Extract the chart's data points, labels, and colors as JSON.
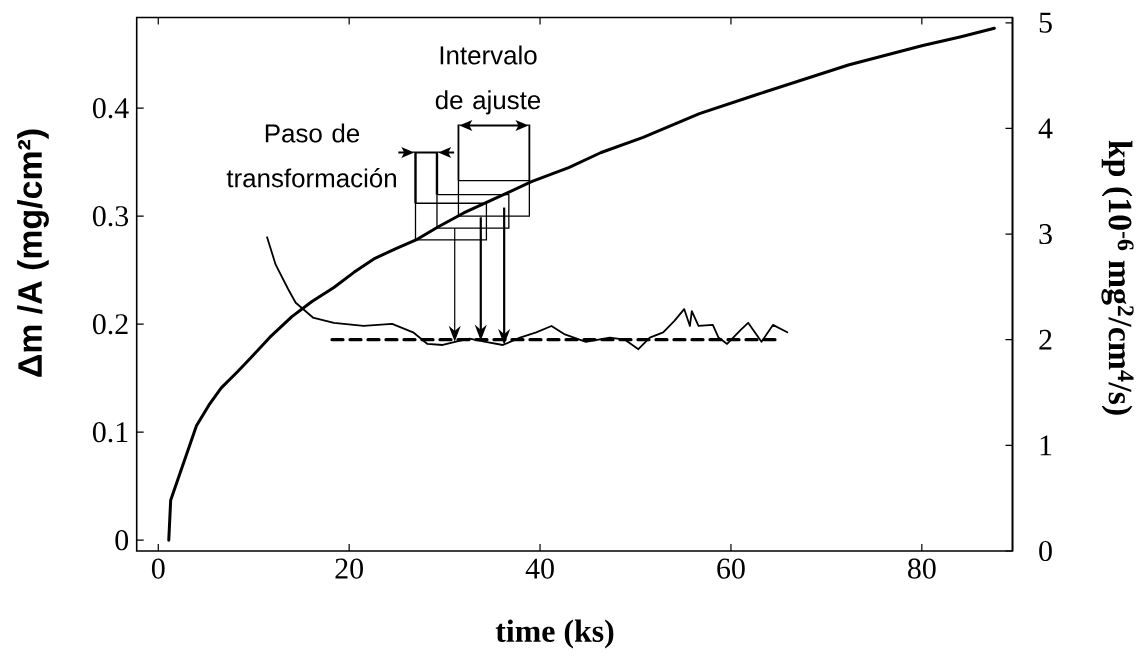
{
  "chart_data": {
    "type": "line",
    "xlabel": "time (ks)",
    "ylabel": "Δm /A (mg/cm²)",
    "y2label": "kp (10$^{-6}$ mg$^{2}$/cm$^{4}$/s)",
    "annotations": [
      "Paso de transformación",
      "Intervalo de ajuste"
    ],
    "xlim": [
      -2.26,
      89.5
    ],
    "xticks": [
      0,
      20,
      40,
      60,
      80
    ],
    "ylim": [
      -0.01,
      0.484
    ],
    "yticks": [
      0,
      0.1,
      0.2,
      0.3,
      0.4
    ],
    "y2lim": [
      0,
      5.05
    ],
    "y2ticks": [
      0,
      1,
      2,
      3,
      4,
      5
    ],
    "marker": "none",
    "series": [
      {
        "color": "#000000",
        "x": [
          1.1,
          1.3,
          2.2,
          3.1,
          4.0,
          5.3,
          6.6,
          8.3,
          9.6,
          11.7,
          14.0,
          16.1,
          18.4,
          20.5,
          22.7,
          24.9,
          27.0,
          29.3,
          32.0,
          35.2,
          39.1,
          43.0,
          46.4,
          50.8,
          56.7,
          62.5,
          67.4,
          72.3,
          76.2,
          80.1,
          84.0,
          87.6
        ],
        "values": [
          0.0,
          0.037,
          0.06,
          0.083,
          0.106,
          0.125,
          0.141,
          0.156,
          0.168,
          0.188,
          0.207,
          0.221,
          0.234,
          0.248,
          0.261,
          0.27,
          0.278,
          0.29,
          0.303,
          0.316,
          0.332,
          0.345,
          0.359,
          0.373,
          0.395,
          0.412,
          0.426,
          0.44,
          0.449,
          0.458,
          0.466,
          0.474
        ]
      },
      {
        "color": "#000000",
        "axis": "y2",
        "x": [
          11.4,
          12.3,
          13.6,
          14.4,
          16.2,
          18.4,
          21.5,
          24.5,
          26.7,
          28.2,
          29.8,
          31.1,
          32.6,
          34.3,
          36.1,
          37.9,
          39.6,
          41.2,
          42.6,
          44.8,
          47.3,
          48.9,
          50.3,
          51.5,
          52.9,
          54.1,
          55.1,
          55.7,
          55.9,
          56.6,
          58.1,
          58.7,
          59.6,
          61.0,
          61.8,
          63.2,
          64.4,
          65.9
        ],
        "values": [
          2.97,
          2.71,
          2.48,
          2.35,
          2.21,
          2.16,
          2.13,
          2.15,
          2.07,
          1.96,
          1.95,
          1.98,
          2.01,
          1.98,
          1.95,
          2.02,
          2.07,
          2.13,
          2.05,
          1.98,
          2.02,
          2.0,
          1.91,
          2.02,
          2.07,
          2.18,
          2.29,
          2.13,
          2.27,
          2.13,
          2.14,
          2.02,
          1.96,
          2.09,
          2.16,
          1.98,
          2.14,
          2.07
        ]
      },
      {
        "color": "#000000",
        "axis": "y2",
        "line_style": "dashed",
        "x": [
          18.2,
          65.1
        ],
        "values": [
          2.0,
          2.0
        ]
      }
    ]
  }
}
